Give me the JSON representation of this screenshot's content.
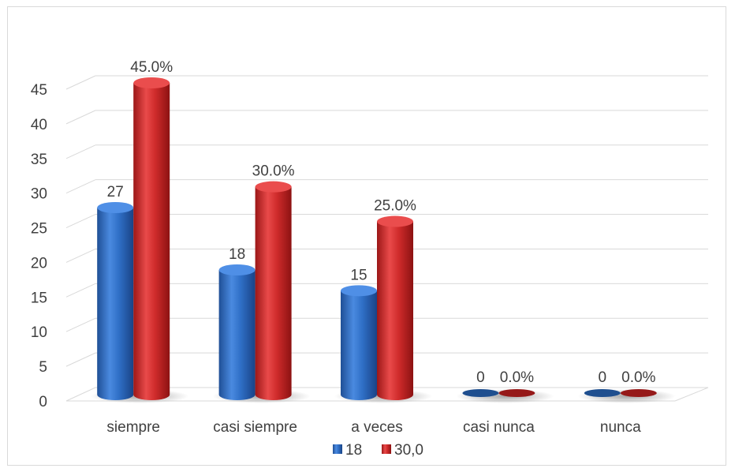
{
  "chart_data": {
    "type": "bar",
    "style": "3d-cylinder",
    "categories": [
      "siempre",
      "casi siempre",
      "a veces",
      "casi nunca",
      "nunca"
    ],
    "series": [
      {
        "name": "18",
        "values": [
          27,
          18,
          15,
          0,
          0
        ],
        "labels": [
          "27",
          "18",
          "15",
          "0",
          "0"
        ],
        "color": "#2e6fc4"
      },
      {
        "name": "30,0",
        "values": [
          45,
          30,
          25,
          0,
          0
        ],
        "labels": [
          "45.0%",
          "30.0%",
          "25.0%",
          "0.0%",
          "0.0%"
        ],
        "color": "#cc2a2a"
      }
    ],
    "ylim": [
      0,
      45
    ],
    "yticks": [
      "0",
      "5",
      "10",
      "15",
      "20",
      "25",
      "30",
      "35",
      "40",
      "45"
    ],
    "grid": true,
    "legend_position": "bottom"
  }
}
